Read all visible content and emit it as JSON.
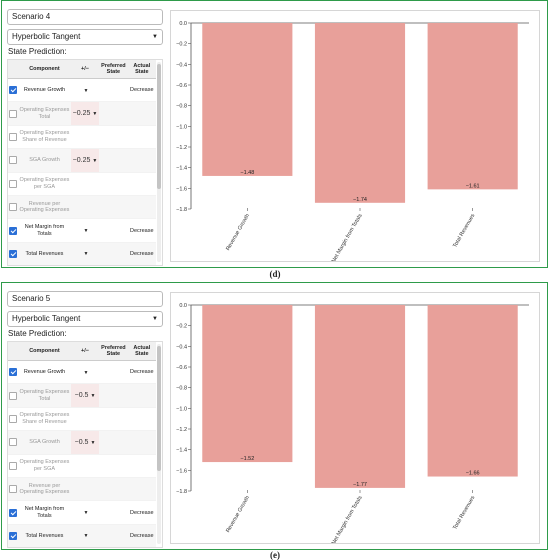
{
  "panels": [
    {
      "scenario_name": "Scenario 4",
      "function_select": "Hyperbolic Tangent",
      "state_prediction_label": "State Prediction:",
      "columns": [
        "Component",
        "+/−",
        "Preferred State",
        "Actual State"
      ],
      "rows": [
        {
          "checked": true,
          "component": "Revenue Growth",
          "pm": "",
          "pm_dropdown": true,
          "preferred": "",
          "actual": "Decrease"
        },
        {
          "checked": false,
          "component": "Operating Expenses Total",
          "pm": "−0.25",
          "pm_dropdown": true,
          "preferred": "",
          "actual": ""
        },
        {
          "checked": false,
          "component": "Operating Expenses Share of Revenue",
          "pm": "",
          "pm_dropdown": false,
          "preferred": "",
          "actual": ""
        },
        {
          "checked": false,
          "component": "SGA Growth",
          "pm": "−0.25",
          "pm_dropdown": true,
          "preferred": "",
          "actual": ""
        },
        {
          "checked": false,
          "component": "Operating Expenses per SGA",
          "pm": "",
          "pm_dropdown": false,
          "preferred": "",
          "actual": ""
        },
        {
          "checked": false,
          "component": "Revenue per Operating Expenses",
          "pm": "",
          "pm_dropdown": false,
          "preferred": "",
          "actual": ""
        },
        {
          "checked": true,
          "component": "Net Margin from Totals",
          "pm": "",
          "pm_dropdown": true,
          "preferred": "",
          "actual": "Decrease"
        },
        {
          "checked": true,
          "component": "Total Revenues",
          "pm": "",
          "pm_dropdown": true,
          "preferred": "",
          "actual": "Decrease"
        }
      ],
      "caption": "(d)",
      "chart_data": {
        "type": "bar",
        "categories": [
          "Revenue Growth",
          "Net Margin from Totals",
          "Total Revenues"
        ],
        "values": [
          -1.48,
          -1.74,
          -1.61
        ],
        "value_labels": [
          "−1.48",
          "−1.74",
          "−1.61"
        ],
        "ylim": [
          -1.8,
          0
        ],
        "yticks": [
          0.0,
          -0.2,
          -0.4,
          -0.6,
          -0.8,
          -1.0,
          -1.2,
          -1.4,
          -1.6,
          -1.8
        ],
        "ytick_labels": [
          "0.0",
          "−0.2",
          "−0.4",
          "−0.6",
          "−0.8",
          "−1.0",
          "−1.2",
          "−1.4",
          "−1.6",
          "−1.8"
        ],
        "bar_color": "#e8a09a",
        "grid": false
      }
    },
    {
      "scenario_name": "Scenario 5",
      "function_select": "Hyperbolic Tangent",
      "state_prediction_label": "State Prediction:",
      "columns": [
        "Component",
        "+/−",
        "Preferred State",
        "Actual State"
      ],
      "rows": [
        {
          "checked": true,
          "component": "Revenue Growth",
          "pm": "",
          "pm_dropdown": true,
          "preferred": "",
          "actual": "Decrease"
        },
        {
          "checked": false,
          "component": "Operating Expenses Total",
          "pm": "−0.5",
          "pm_dropdown": true,
          "preferred": "",
          "actual": ""
        },
        {
          "checked": false,
          "component": "Operating Expenses Share of Revenue",
          "pm": "",
          "pm_dropdown": false,
          "preferred": "",
          "actual": ""
        },
        {
          "checked": false,
          "component": "SGA Growth",
          "pm": "−0.5",
          "pm_dropdown": true,
          "preferred": "",
          "actual": ""
        },
        {
          "checked": false,
          "component": "Operating Expenses per SGA",
          "pm": "",
          "pm_dropdown": false,
          "preferred": "",
          "actual": ""
        },
        {
          "checked": false,
          "component": "Revenue per Operating Expenses",
          "pm": "",
          "pm_dropdown": false,
          "preferred": "",
          "actual": ""
        },
        {
          "checked": true,
          "component": "Net Margin from Totals",
          "pm": "",
          "pm_dropdown": true,
          "preferred": "",
          "actual": "Decrease"
        },
        {
          "checked": true,
          "component": "Total Revenues",
          "pm": "",
          "pm_dropdown": true,
          "preferred": "",
          "actual": "Decrease"
        }
      ],
      "caption": "(e)",
      "chart_data": {
        "type": "bar",
        "categories": [
          "Revenue Growth",
          "Net Margin from Totals",
          "Total Revenues"
        ],
        "values": [
          -1.52,
          -1.77,
          -1.66
        ],
        "value_labels": [
          "−1.52",
          "−1.77",
          "−1.66"
        ],
        "ylim": [
          -1.8,
          0
        ],
        "yticks": [
          0.0,
          -0.2,
          -0.4,
          -0.6,
          -0.8,
          -1.0,
          -1.2,
          -1.4,
          -1.6,
          -1.8
        ],
        "ytick_labels": [
          "0.0",
          "−0.2",
          "−0.4",
          "−0.6",
          "−0.8",
          "−1.0",
          "−1.2",
          "−1.4",
          "−1.6",
          "−1.8"
        ],
        "bar_color": "#e8a09a",
        "grid": false
      }
    }
  ]
}
